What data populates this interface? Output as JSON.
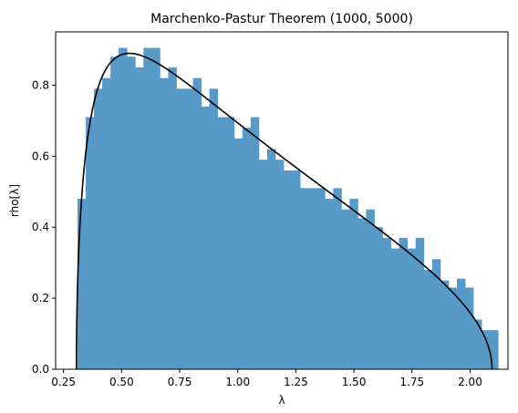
{
  "chart_data": {
    "type": "bar",
    "title": "Marchenko-Pastur Theorem (1000, 5000)",
    "xlabel": "λ",
    "ylabel": "rho[λ]",
    "xlim": [
      0.216,
      2.163
    ],
    "ylim": [
      0.0,
      0.95
    ],
    "x_ticks": [
      0.25,
      0.5,
      0.75,
      1.0,
      1.25,
      1.5,
      1.75,
      2.0
    ],
    "x_tick_labels": [
      "0.25",
      "0.50",
      "0.75",
      "1.00",
      "1.25",
      "1.50",
      "1.75",
      "2.00"
    ],
    "y_ticks": [
      0.0,
      0.2,
      0.4,
      0.6,
      0.8
    ],
    "y_tick_labels": [
      "0.0",
      "0.2",
      "0.4",
      "0.6",
      "0.8"
    ],
    "bar_color": "#5799c7",
    "curve_color": "#000000",
    "histogram": {
      "bin_start": 0.31,
      "bin_width": 0.0355,
      "values": [
        0.48,
        0.71,
        0.79,
        0.82,
        0.88,
        0.905,
        0.88,
        0.85,
        0.905,
        0.905,
        0.82,
        0.85,
        0.79,
        0.79,
        0.82,
        0.74,
        0.79,
        0.71,
        0.71,
        0.65,
        0.68,
        0.71,
        0.59,
        0.62,
        0.59,
        0.56,
        0.56,
        0.51,
        0.51,
        0.51,
        0.48,
        0.51,
        0.45,
        0.48,
        0.425,
        0.45,
        0.4,
        0.37,
        0.34,
        0.37,
        0.34,
        0.37,
        0.28,
        0.31,
        0.25,
        0.23,
        0.255,
        0.23,
        0.14,
        0.11,
        0.11
      ]
    },
    "curve": {
      "type": "marchenko-pastur",
      "ratio": 0.2,
      "sigma2": 1.0,
      "lambda_min": 0.3056,
      "lambda_max": 2.0944
    }
  }
}
